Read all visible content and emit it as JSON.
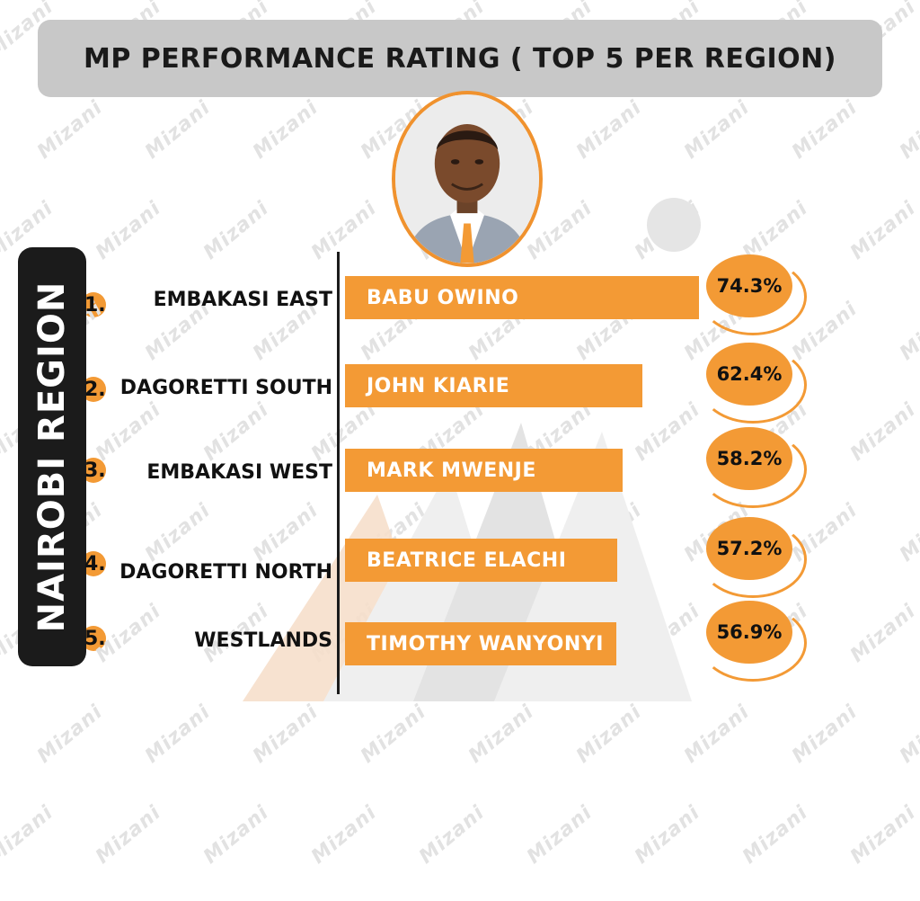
{
  "header": {
    "title": "MP PERFORMANCE RATING ( TOP 5 PER REGION)"
  },
  "region": {
    "label": "NAIROBI REGION"
  },
  "watermark": {
    "text": "Mizani"
  },
  "colors": {
    "accent": "#f39a35",
    "dark": "#1b1b1b",
    "title_bg": "#c8c8c8"
  },
  "chart_data": {
    "type": "bar",
    "orientation": "horizontal",
    "title": "MP PERFORMANCE RATING ( TOP 5 PER REGION)",
    "ranks": [
      "1.",
      "2.",
      "3.",
      "4.",
      "5."
    ],
    "constituencies": [
      "EMBAKASI EAST",
      "DAGORETTI SOUTH",
      "EMBAKASI WEST",
      "DAGORETTI NORTH",
      "WESTLANDS"
    ],
    "categories": [
      "BABU OWINO",
      "JOHN KIARIE",
      "MARK MWENJE",
      "BEATRICE ELACHI",
      "TIMOTHY WANYONYI"
    ],
    "values": [
      74.3,
      62.4,
      58.2,
      57.2,
      56.9
    ],
    "value_labels": [
      "74.3%",
      "62.4%",
      "58.2%",
      "57.2%",
      "56.9%"
    ],
    "xlabel": "",
    "ylabel": ""
  }
}
